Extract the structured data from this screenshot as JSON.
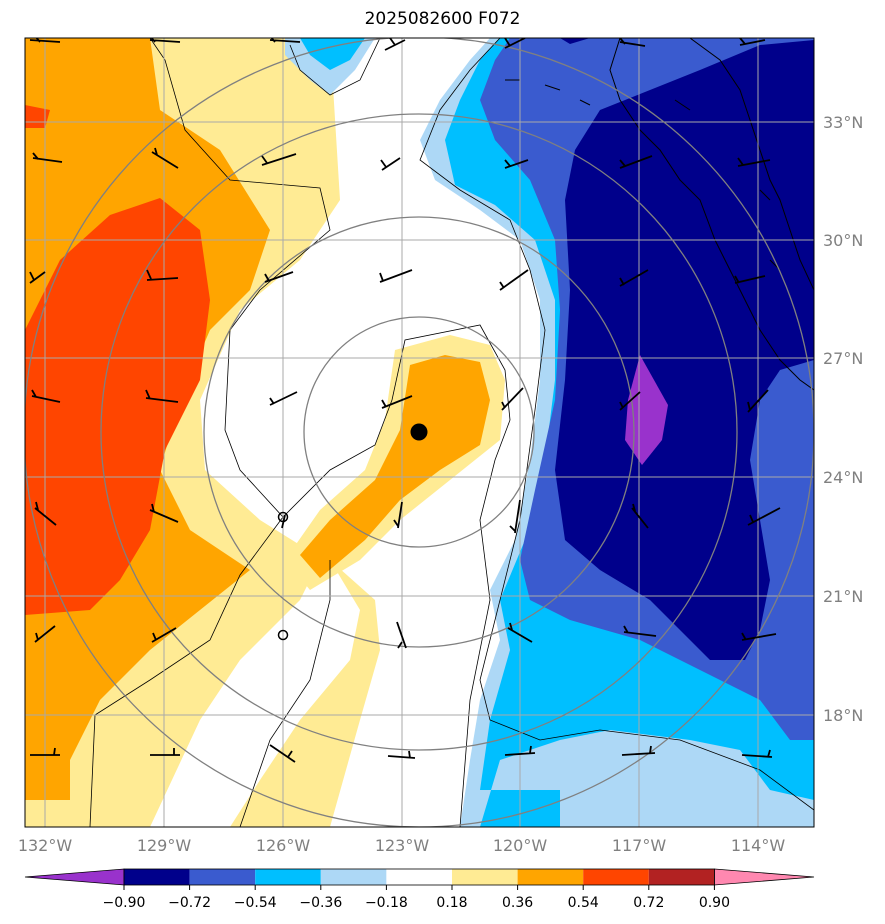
{
  "title": "2025082600 F072",
  "map": {
    "lon_ticks": [
      "132°W",
      "129°W",
      "126°W",
      "123°W",
      "120°W",
      "117°W",
      "114°W"
    ],
    "lat_ticks": [
      "33°N",
      "30°N",
      "27°N",
      "24°N",
      "21°N",
      "18°N"
    ],
    "gridline_color": "#a9a9a9",
    "range_ring_color": "#808080"
  },
  "colorbar": {
    "levels": [
      "−0.90",
      "−0.72",
      "−0.54",
      "−0.36",
      "−0.18",
      "0.18",
      "0.36",
      "0.54",
      "0.72",
      "0.90"
    ],
    "colors": [
      "#9932cc",
      "#00008b",
      "#3a5bcf",
      "#00bfff",
      "#add8f6",
      "#ffffff",
      "#ffeb94",
      "#ffa500",
      "#ff4500",
      "#b22222",
      "#ff88b0"
    ]
  },
  "markers": {
    "center": "filled-circle",
    "secondary": [
      "open-circle",
      "open-circle"
    ]
  }
}
